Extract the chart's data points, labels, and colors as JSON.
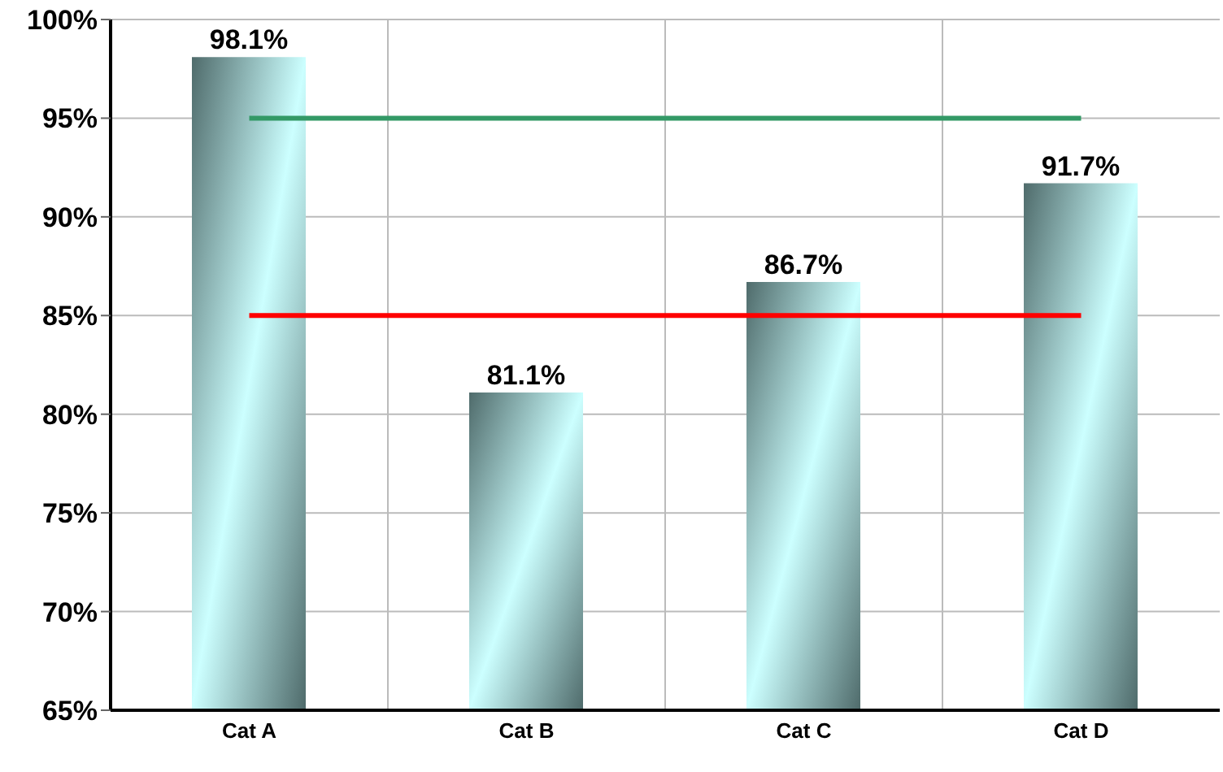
{
  "chart_data": {
    "type": "bar",
    "categories": [
      "Cat  A",
      "Cat  B",
      "Cat  C",
      "Cat  D"
    ],
    "values": [
      98.1,
      81.1,
      86.7,
      91.7
    ],
    "color": "#ccffff",
    "value_labels": [
      "98.1%",
      "81.1%",
      "86.7%",
      "91.7%"
    ],
    "ylim": [
      65,
      100
    ],
    "yticks": [
      {
        "value": 65,
        "label": "65%"
      },
      {
        "value": 70,
        "label": "70%"
      },
      {
        "value": 75,
        "label": "75%"
      },
      {
        "value": 80,
        "label": "80%"
      },
      {
        "value": 85,
        "label": "85%"
      },
      {
        "value": 90,
        "label": "90%"
      },
      {
        "value": 95,
        "label": "95%"
      },
      {
        "value": 100,
        "label": "100%"
      }
    ],
    "grid": true,
    "ref_lines": [
      {
        "axis": "y",
        "value": 95,
        "color": "#339966"
      },
      {
        "axis": "y",
        "value": 85,
        "color": "#ff0000"
      }
    ]
  }
}
